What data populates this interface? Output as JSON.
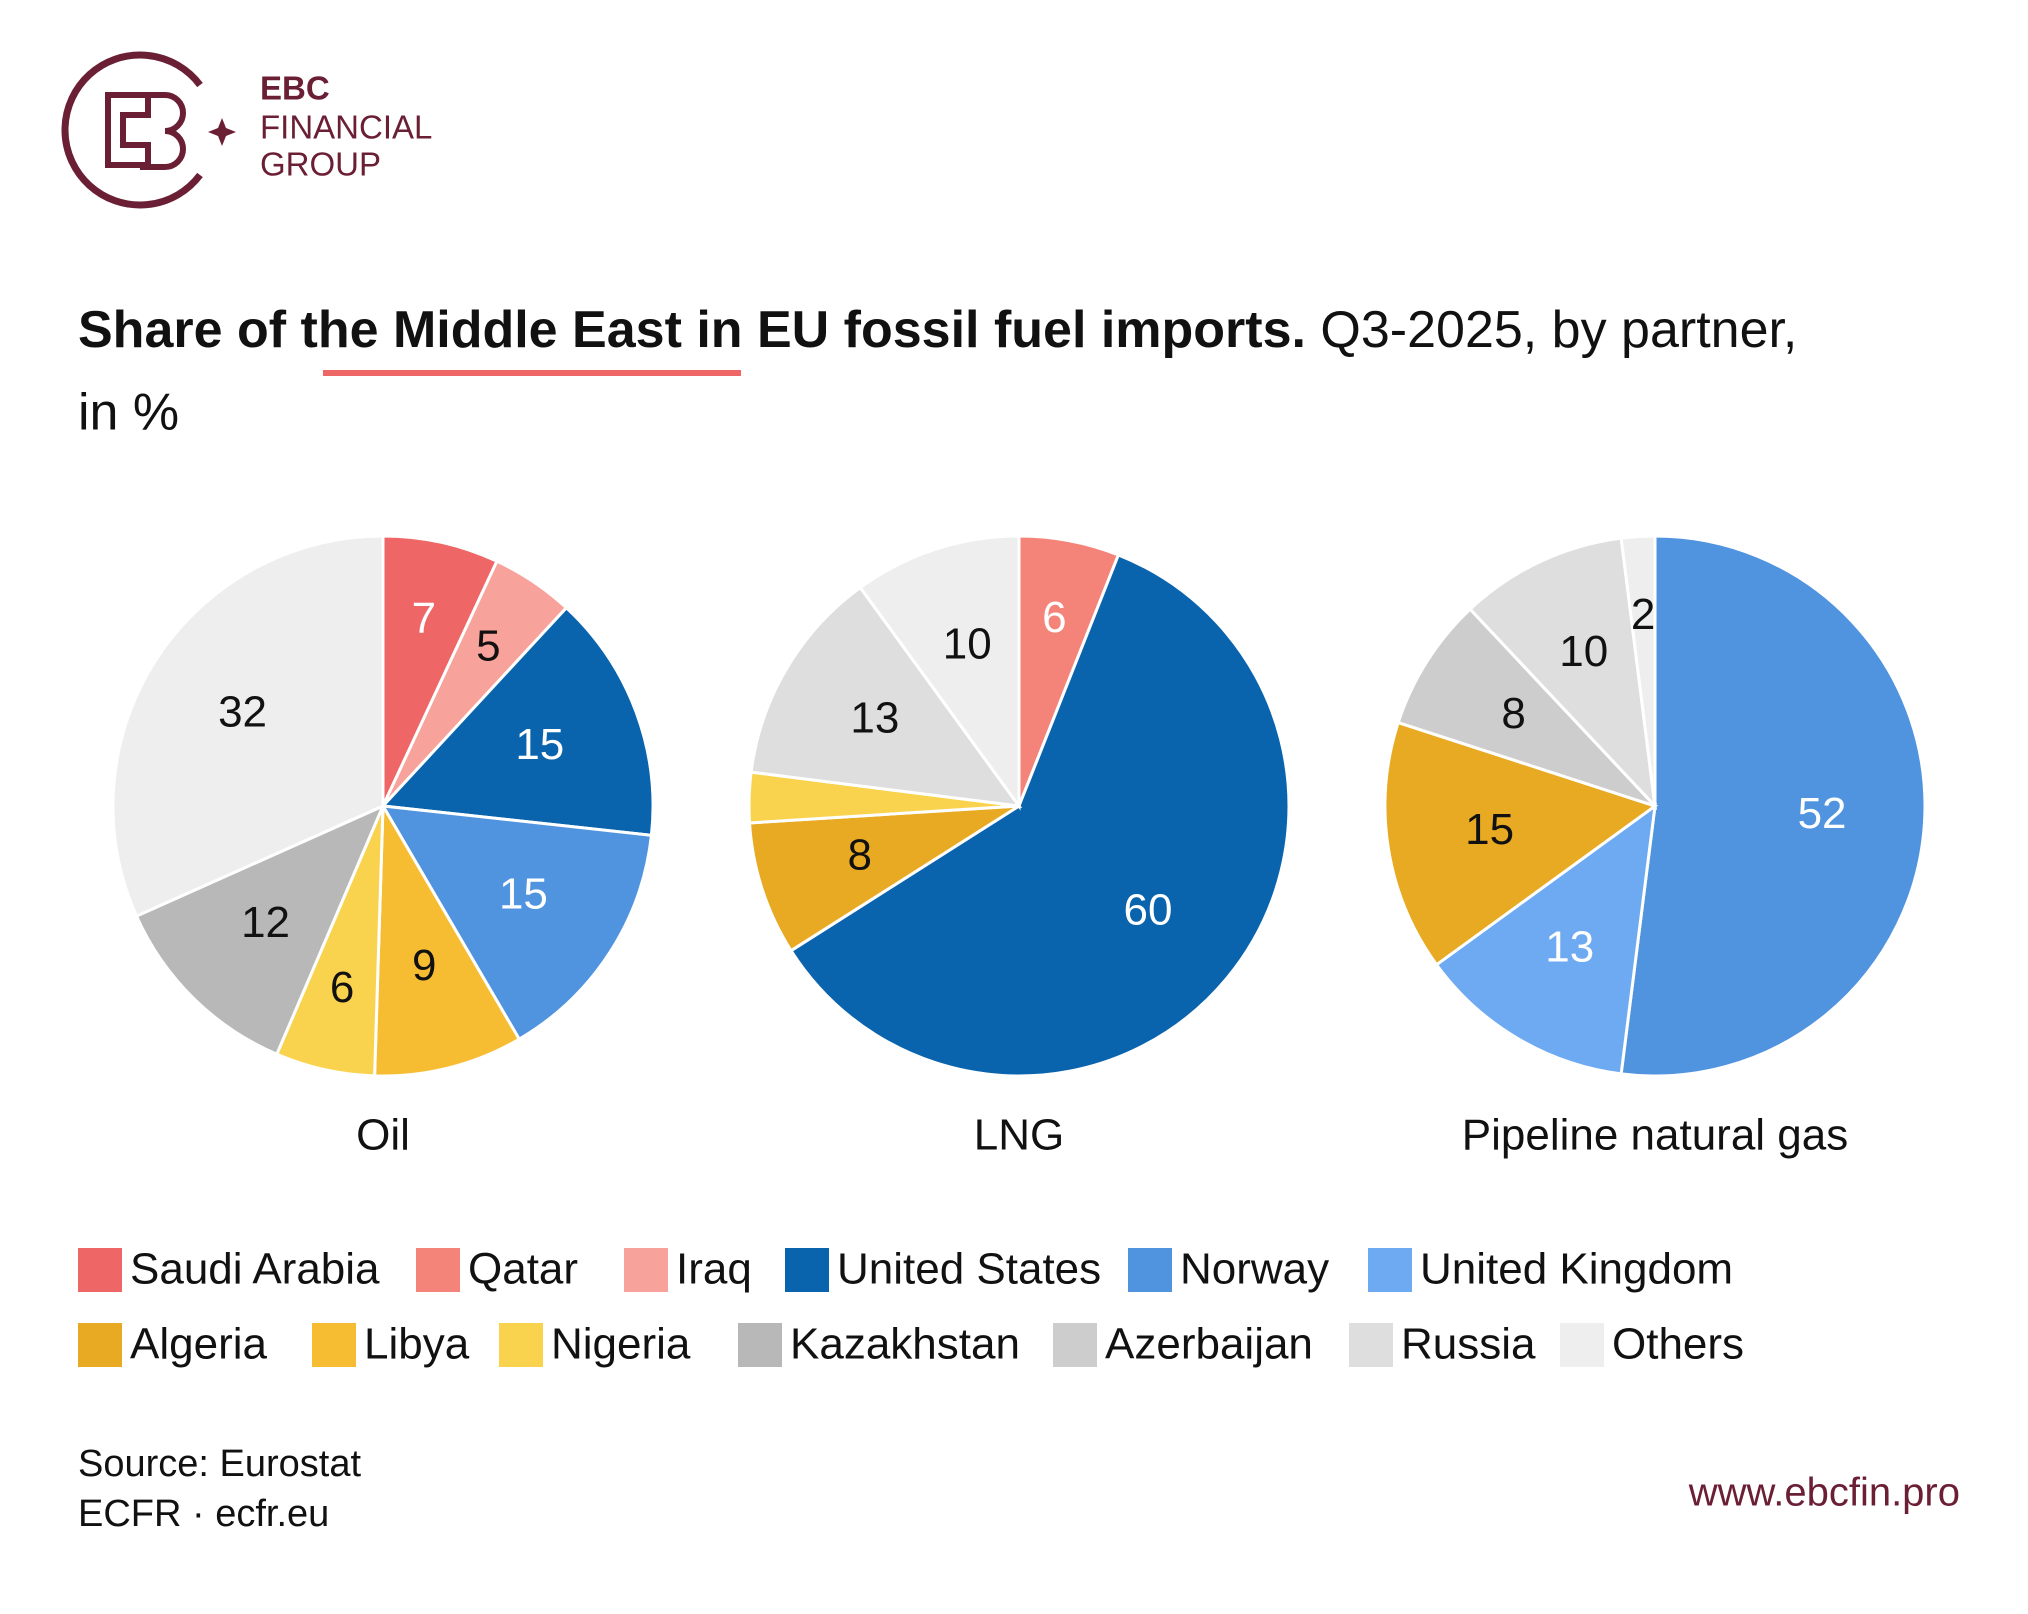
{
  "logo": {
    "line1": "EBC",
    "line2": "FINANCIAL",
    "line3": "GROUP"
  },
  "header": {
    "title_bold": "Share of the Middle East in EU fossil fuel imports.",
    "title_rest": " Q3-2025, by partner,",
    "title_line2": "in %"
  },
  "chart_data": [
    {
      "type": "pie",
      "title": "Oil",
      "values": [
        7,
        5,
        15,
        15,
        9,
        6,
        12,
        32
      ],
      "colors": [
        "#ee6666",
        "#f7a29a",
        "#0a64ad",
        "#5094df",
        "#f6bd32",
        "#fad34e",
        "#b8b8b8",
        "#eeeeee"
      ]
    },
    {
      "type": "pie",
      "title": "LNG",
      "values": [
        6,
        60,
        8,
        3,
        13,
        10
      ],
      "value_labels": [
        "6",
        "60",
        "8",
        null,
        "13",
        "10"
      ],
      "colors": [
        "#f4847a",
        "#0a64ad",
        "#e8aa22",
        "#fad34e",
        "#dedede",
        "#eeeeee"
      ]
    },
    {
      "type": "pie",
      "title": "Pipeline natural gas",
      "values": [
        52,
        13,
        15,
        8,
        10,
        2
      ],
      "colors": [
        "#5094df",
        "#6eaaf2",
        "#e8aa22",
        "#cdcdcd",
        "#dedede",
        "#eeeeee"
      ]
    }
  ],
  "legend": [
    {
      "name": "Saudi Arabia",
      "color": "#ee6666"
    },
    {
      "name": "Qatar",
      "color": "#f4847a"
    },
    {
      "name": "Iraq",
      "color": "#f7a29a"
    },
    {
      "name": "United States",
      "color": "#0a64ad"
    },
    {
      "name": "Norway",
      "color": "#5094df"
    },
    {
      "name": "United Kingdom",
      "color": "#6eaaf2"
    },
    {
      "name": "Algeria",
      "color": "#e8aa22"
    },
    {
      "name": "Libya",
      "color": "#f6bd32"
    },
    {
      "name": "Nigeria",
      "color": "#fad34e"
    },
    {
      "name": "Kazakhstan",
      "color": "#b8b8b8"
    },
    {
      "name": "Azerbaijan",
      "color": "#cdcdcd"
    },
    {
      "name": "Russia",
      "color": "#dedede"
    },
    {
      "name": "Others",
      "color": "#eeeeee"
    }
  ],
  "footer": {
    "source": "Source: Eurostat",
    "credit": "ECFR · ecfr.eu",
    "url": "www.ebcfin.pro"
  }
}
